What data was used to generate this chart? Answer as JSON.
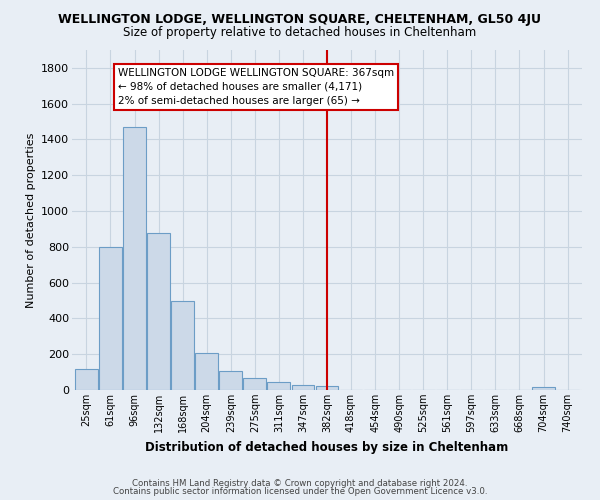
{
  "title": "WELLINGTON LODGE, WELLINGTON SQUARE, CHELTENHAM, GL50 4JU",
  "subtitle": "Size of property relative to detached houses in Cheltenham",
  "xlabel": "Distribution of detached houses by size in Cheltenham",
  "ylabel": "Number of detached properties",
  "footer_line1": "Contains HM Land Registry data © Crown copyright and database right 2024.",
  "footer_line2": "Contains public sector information licensed under the Open Government Licence v3.0.",
  "bar_labels": [
    "25sqm",
    "61sqm",
    "96sqm",
    "132sqm",
    "168sqm",
    "204sqm",
    "239sqm",
    "275sqm",
    "311sqm",
    "347sqm",
    "382sqm",
    "418sqm",
    "454sqm",
    "490sqm",
    "525sqm",
    "561sqm",
    "597sqm",
    "633sqm",
    "668sqm",
    "704sqm",
    "740sqm"
  ],
  "bar_values": [
    120,
    800,
    1470,
    880,
    500,
    205,
    105,
    65,
    45,
    30,
    25,
    0,
    0,
    0,
    0,
    0,
    0,
    0,
    0,
    15,
    0
  ],
  "bar_color": "#ccd9e8",
  "bar_edge_color": "#6c9dc6",
  "vline_x_index": 10,
  "vline_color": "#cc0000",
  "annotation_title": "WELLINGTON LODGE WELLINGTON SQUARE: 367sqm",
  "annotation_line1": "← 98% of detached houses are smaller (4,171)",
  "annotation_line2": "2% of semi-detached houses are larger (65) →",
  "ylim": [
    0,
    1900
  ],
  "yticks": [
    0,
    200,
    400,
    600,
    800,
    1000,
    1200,
    1400,
    1600,
    1800
  ],
  "background_color": "#e8eef5",
  "grid_color": "#c8d4e0",
  "title_fontsize": 9,
  "subtitle_fontsize": 8.5
}
